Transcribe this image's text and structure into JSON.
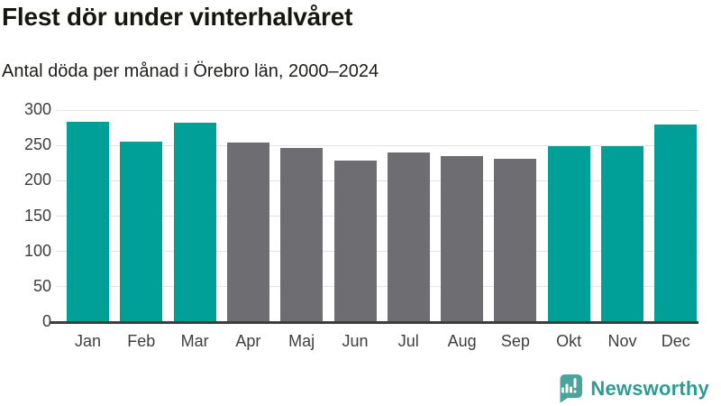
{
  "header": {
    "title": "Flest dör under vinterhalvåret",
    "subtitle": "Antal döda per månad i Örebro län, 2000–2024"
  },
  "chart_data": {
    "type": "bar",
    "title": "Flest dör under vinterhalvåret",
    "subtitle": "Antal döda per månad i Örebro län, 2000–2024",
    "categories": [
      "Jan",
      "Feb",
      "Mar",
      "Apr",
      "Maj",
      "Jun",
      "Jul",
      "Aug",
      "Sep",
      "Okt",
      "Nov",
      "Dec"
    ],
    "values": [
      284,
      255,
      282,
      254,
      246,
      228,
      240,
      235,
      231,
      249,
      249,
      280
    ],
    "highlighted_categories": [
      "Jan",
      "Feb",
      "Mar",
      "Okt",
      "Nov",
      "Dec"
    ],
    "highlight_color": "#00a098",
    "base_color": "#6d6d72",
    "xlabel": "",
    "ylabel": "",
    "ylim": [
      0,
      300
    ],
    "yticks": [
      0,
      50,
      100,
      150,
      200,
      250,
      300
    ],
    "grid": true,
    "gridline_color": "#e3e3e3",
    "axis_line_color": "#3e3e3e",
    "tick_label_color": "#3e3e3e",
    "legend": "none"
  },
  "footer": {
    "brand": "Newsworthy",
    "brand_color": "#2f9b94",
    "logo_icon": "newsworthy-speech-bubble-bar-chart-icon",
    "logo_icon_color": "#4ba39c"
  }
}
